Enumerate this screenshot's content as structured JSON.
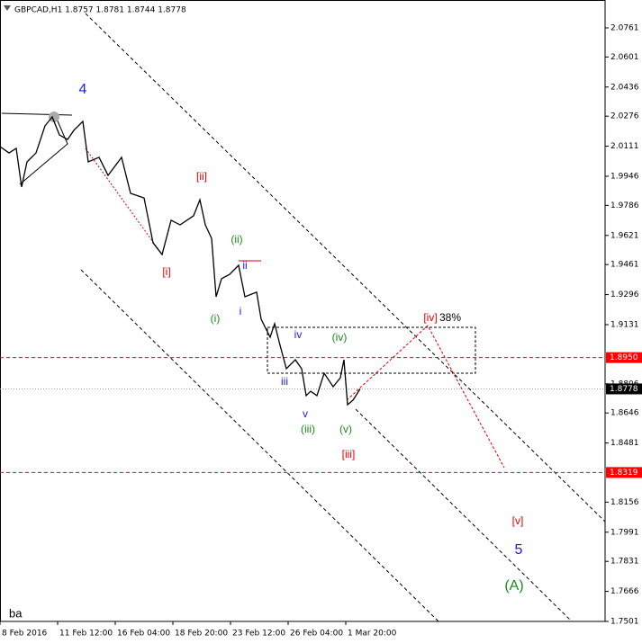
{
  "chart_data": {
    "type": "line",
    "title": "GBPCAD,H1 1.8757 1.8781 1.8744 1.8778",
    "footer": "ba",
    "x": [
      0,
      10,
      18,
      24,
      30,
      40,
      50,
      58,
      66,
      75,
      82,
      92,
      98,
      110,
      120,
      135,
      145,
      160,
      170,
      180,
      190,
      200,
      215,
      222,
      228,
      235,
      240,
      246,
      255,
      265,
      272,
      285,
      290,
      300,
      305,
      310,
      318,
      328,
      335,
      340,
      345,
      352,
      360,
      370,
      378,
      382,
      386,
      392,
      400
    ],
    "series": [
      {
        "name": "GBPCAD",
        "color": "#000000",
        "values": [
          2.0109,
          2.0074,
          2.0099,
          1.9887,
          2.0025,
          2.0074,
          2.0223,
          2.0272,
          2.0173,
          2.0148,
          2.0198,
          2.0247,
          2.0025,
          2.005,
          1.9951,
          2.005,
          1.9852,
          1.9827,
          1.958,
          1.9516,
          1.9704,
          1.9679,
          1.9729,
          1.9817,
          1.9679,
          1.9605,
          1.9284,
          1.9383,
          1.9407,
          1.9457,
          1.9284,
          1.9309,
          1.9161,
          1.9062,
          1.9136,
          1.9037,
          1.8889,
          1.8938,
          1.8889,
          1.8741,
          1.8765,
          1.8741,
          1.8864,
          1.879,
          1.8839,
          1.8938,
          1.8691,
          1.8716,
          1.8778
        ]
      }
    ],
    "xlim": [
      0,
      672
    ],
    "xticks": [
      {
        "value": 0,
        "label": "8 Feb 2016"
      },
      {
        "value": 64,
        "label": "11 Feb 12:00"
      },
      {
        "value": 128,
        "label": "16 Feb 04:00"
      },
      {
        "value": 192,
        "label": "18 Feb 20:00"
      },
      {
        "value": 256,
        "label": "23 Feb 12:00"
      },
      {
        "value": 320,
        "label": "26 Feb 04:00"
      },
      {
        "value": 384,
        "label": "1 Mar 20:00"
      }
    ],
    "ylim": [
      1.7501,
      2.0914
    ],
    "yticks": [
      2.0761,
      2.0601,
      2.0436,
      2.0276,
      2.0111,
      1.9946,
      1.9786,
      1.9621,
      1.9461,
      1.9296,
      1.9131,
      1.8806,
      1.8646,
      1.8481,
      1.8156,
      1.7991,
      1.7831,
      1.7666,
      1.7501
    ],
    "levels": [
      {
        "value": 1.895,
        "label": "1.8950",
        "color": "#ff0000"
      },
      {
        "value": 1.8319,
        "label": "1.8319",
        "color": "#ff0000"
      },
      {
        "value": 1.8778,
        "label": "1.8778",
        "color": "#000000"
      }
    ],
    "annotations": [
      {
        "text": "4",
        "color": "#1a1aff"
      },
      {
        "text": "[ii]",
        "color": "#e00000"
      },
      {
        "text": "[i]",
        "color": "#e00000"
      },
      {
        "text": "(ii)",
        "color": "#1a8a1a"
      },
      {
        "text": "ii",
        "color": "#1a1aff"
      },
      {
        "text": "(i)",
        "color": "#1a8a1a"
      },
      {
        "text": "i",
        "color": "#1a1aff"
      },
      {
        "text": "iv",
        "color": "#1a1aff"
      },
      {
        "text": "(iv)",
        "color": "#1a8a1a"
      },
      {
        "text": "iii",
        "color": "#1a1aff"
      },
      {
        "text": "v",
        "color": "#1a1aff"
      },
      {
        "text": "(iii)",
        "color": "#1a8a1a"
      },
      {
        "text": "(v)",
        "color": "#1a8a1a"
      },
      {
        "text": "[iii]",
        "color": "#e00000"
      },
      {
        "text": "[iv]",
        "color": "#e00000"
      },
      {
        "text": "38%",
        "color": "#000000"
      },
      {
        "text": "[v]",
        "color": "#e00000"
      },
      {
        "text": "5",
        "color": "#1a1aff"
      },
      {
        "text": "(A)",
        "color": "#1a8a1a"
      }
    ]
  }
}
